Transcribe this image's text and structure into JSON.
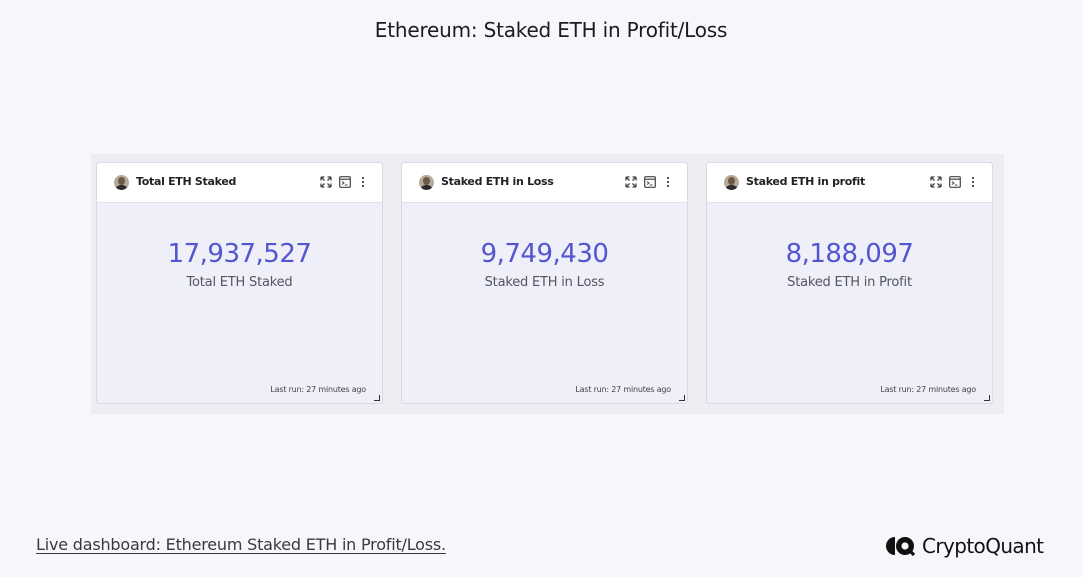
{
  "page": {
    "title": "Ethereum: Staked ETH in Profit/Loss"
  },
  "cards": [
    {
      "title": "Total ETH Staked",
      "value": "17,937,527",
      "label": "Total ETH Staked",
      "last_run": "Last run: 27 minutes ago"
    },
    {
      "title": "Staked ETH in Loss",
      "value": "9,749,430",
      "label": "Staked ETH in Loss",
      "last_run": "Last run: 27 minutes ago"
    },
    {
      "title": "Staked ETH in profit",
      "value": "8,188,097",
      "label": "Staked ETH in Profit",
      "last_run": "Last run: 27 minutes ago"
    }
  ],
  "card_icons": [
    "avatar",
    "expand-icon",
    "console-icon",
    "more-options-icon",
    "resize-handle-icon"
  ],
  "colors": {
    "value": "#5356cf",
    "background": "#f6f7fb",
    "card_body": "#eeeff8"
  },
  "footer": {
    "link_text": "Live dashboard: Ethereum Staked ETH in Profit/Loss.",
    "brand": "CryptoQuant"
  }
}
